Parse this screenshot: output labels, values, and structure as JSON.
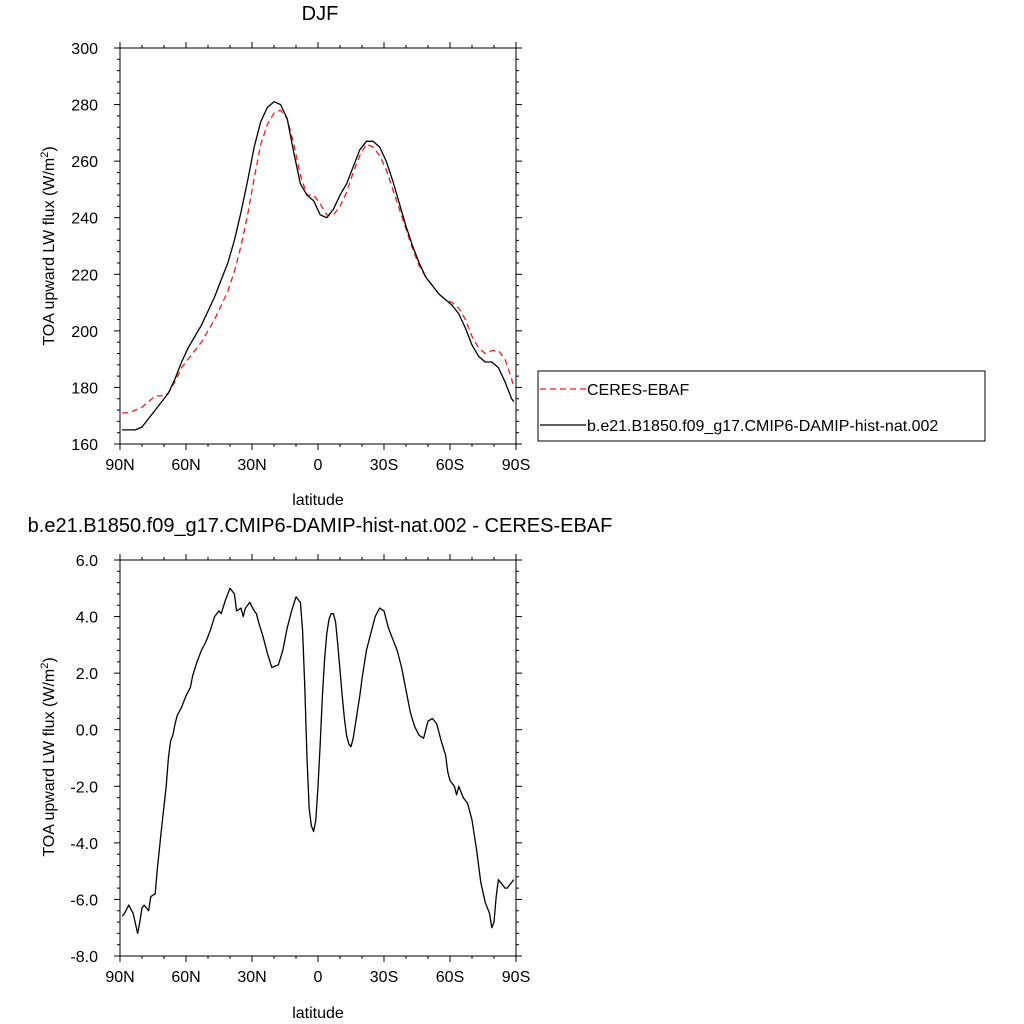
{
  "colors": {
    "obs_line": "#ee1c1c",
    "model_line": "#000000",
    "axis": "#000000",
    "legend_border": "#000000"
  },
  "chart_data": [
    {
      "type": "line",
      "title": "DJF",
      "xlabel": "latitude",
      "ylabel": "TOA upward LW flux (W/m",
      "ylabel_sup": "2",
      "ylabel_close": ")",
      "xlim": [
        -90,
        90
      ],
      "ylim": [
        160,
        300
      ],
      "x_ticks": [
        {
          "value": -90,
          "label": "90N"
        },
        {
          "value": -60,
          "label": "60N"
        },
        {
          "value": -30,
          "label": "30N"
        },
        {
          "value": 0,
          "label": "0"
        },
        {
          "value": 30,
          "label": "30S"
        },
        {
          "value": 60,
          "label": "60S"
        },
        {
          "value": 90,
          "label": "90S"
        }
      ],
      "y_ticks": [
        {
          "value": 160,
          "label": "160"
        },
        {
          "value": 180,
          "label": "180"
        },
        {
          "value": 200,
          "label": "200"
        },
        {
          "value": 220,
          "label": "220"
        },
        {
          "value": 240,
          "label": "240"
        },
        {
          "value": 260,
          "label": "260"
        },
        {
          "value": 280,
          "label": "280"
        },
        {
          "value": 300,
          "label": "300"
        }
      ],
      "legend": {
        "placement": "right",
        "entries": [
          {
            "name": "CERES-EBAF",
            "style": "dashed"
          },
          {
            "name": "b.e21.B1850.f09_g17.CMIP6-DAMIP-hist-nat.002",
            "style": "solid"
          }
        ]
      },
      "series": [
        {
          "name": "CERES-EBAF",
          "style": "dashed",
          "x": [
            -89,
            -86,
            -83,
            -80,
            -77,
            -74,
            -71,
            -68,
            -65,
            -62,
            -59,
            -56,
            -53,
            -50,
            -47,
            -44,
            -41,
            -38,
            -35,
            -32,
            -29,
            -26,
            -23,
            -20,
            -17,
            -14,
            -11,
            -8,
            -5,
            -2,
            1,
            4,
            7,
            10,
            13,
            16,
            19,
            22,
            25,
            28,
            31,
            34,
            37,
            40,
            43,
            46,
            49,
            52,
            55,
            58,
            61,
            64,
            67,
            70,
            73,
            76,
            79,
            82,
            85,
            88,
            89
          ],
          "y": [
            171,
            171,
            172,
            173,
            175,
            177,
            177,
            178,
            182,
            187,
            190,
            193,
            196,
            200,
            204,
            209,
            214,
            221,
            230,
            241,
            254,
            266,
            273,
            277,
            278,
            275,
            266,
            255,
            248,
            248,
            245,
            241,
            241,
            244,
            249,
            256,
            262,
            266,
            265,
            262,
            257,
            250,
            243,
            236,
            229,
            223,
            219,
            216,
            213,
            211,
            210,
            208,
            204,
            198,
            194,
            192,
            193,
            193,
            190,
            183,
            180
          ]
        },
        {
          "name": "b.e21.B1850.f09_g17.CMIP6-DAMIP-hist-nat.002",
          "style": "solid",
          "x": [
            -89,
            -86,
            -83,
            -80,
            -77,
            -74,
            -71,
            -68,
            -65,
            -62,
            -59,
            -56,
            -53,
            -50,
            -47,
            -44,
            -41,
            -38,
            -35,
            -32,
            -29,
            -26,
            -23,
            -20,
            -17,
            -14,
            -11,
            -8,
            -5,
            -2,
            1,
            4,
            7,
            10,
            13,
            16,
            19,
            22,
            25,
            28,
            31,
            34,
            37,
            40,
            43,
            46,
            49,
            52,
            55,
            58,
            61,
            64,
            67,
            70,
            73,
            76,
            79,
            82,
            85,
            88,
            89
          ],
          "y": [
            165,
            165,
            165,
            166,
            169,
            172,
            175,
            178,
            183,
            189,
            194,
            198,
            202,
            207,
            212,
            218,
            224,
            232,
            242,
            253,
            265,
            274,
            279,
            281,
            280,
            275,
            263,
            252,
            248,
            246,
            241,
            240,
            243,
            248,
            252,
            258,
            264,
            267,
            267,
            265,
            260,
            253,
            245,
            237,
            230,
            224,
            219,
            216,
            213,
            211,
            209,
            206,
            201,
            195,
            191,
            189,
            189,
            187,
            182,
            176,
            175
          ]
        }
      ]
    },
    {
      "type": "line",
      "title": "b.e21.B1850.f09_g17.CMIP6-DAMIP-hist-nat.002 - CERES-EBAF",
      "xlabel": "latitude",
      "ylabel": "TOA upward LW flux (W/m",
      "ylabel_sup": "2",
      "ylabel_close": ")",
      "xlim": [
        -90,
        90
      ],
      "ylim": [
        -8,
        6
      ],
      "x_ticks": [
        {
          "value": -90,
          "label": "90N"
        },
        {
          "value": -60,
          "label": "60N"
        },
        {
          "value": -30,
          "label": "30N"
        },
        {
          "value": 0,
          "label": "0"
        },
        {
          "value": 30,
          "label": "30S"
        },
        {
          "value": 60,
          "label": "60S"
        },
        {
          "value": 90,
          "label": "90S"
        }
      ],
      "y_ticks": [
        {
          "value": -8,
          "label": "-8.0"
        },
        {
          "value": -6,
          "label": "-6.0"
        },
        {
          "value": -4,
          "label": "-4.0"
        },
        {
          "value": -2,
          "label": "-2.0"
        },
        {
          "value": 0,
          "label": "0.0"
        },
        {
          "value": 2,
          "label": "2.0"
        },
        {
          "value": 4,
          "label": "4.0"
        },
        {
          "value": 6,
          "label": "6.0"
        }
      ],
      "series": [
        {
          "name": "",
          "style": "solid",
          "x": [
            -89,
            -88,
            -86,
            -84,
            -82,
            -81,
            -80,
            -79,
            -77,
            -76,
            -74,
            -73,
            -71,
            -69,
            -68,
            -67,
            -66,
            -65,
            -64,
            -62,
            -60,
            -58,
            -57,
            -55,
            -53,
            -51,
            -49,
            -47,
            -45,
            -44,
            -42,
            -40,
            -38,
            -37,
            -35,
            -34,
            -33,
            -31,
            -29,
            -28,
            -27,
            -25,
            -23,
            -21,
            -18,
            -16,
            -14,
            -12,
            -10,
            -8,
            -7,
            -6,
            -5,
            -4,
            -3,
            -2,
            -1,
            0,
            1,
            2,
            3,
            4,
            5,
            6,
            7,
            8,
            9,
            10,
            11,
            12,
            13,
            14,
            15,
            16,
            17,
            18,
            19,
            20,
            21,
            22,
            24,
            26,
            28,
            30,
            32,
            34,
            36,
            38,
            40,
            42,
            44,
            46,
            48,
            50,
            52,
            54,
            56,
            58,
            59,
            60,
            62,
            63,
            64,
            66,
            68,
            70,
            72,
            74,
            76,
            78,
            79,
            80,
            81,
            82,
            83,
            84,
            85,
            86,
            87,
            88,
            89
          ],
          "y": [
            -6.6,
            -6.5,
            -6.2,
            -6.5,
            -7.2,
            -6.8,
            -6.3,
            -6.2,
            -6.4,
            -5.9,
            -5.8,
            -4.9,
            -3.4,
            -2.0,
            -1.0,
            -0.4,
            -0.2,
            0.2,
            0.5,
            0.8,
            1.2,
            1.5,
            1.9,
            2.4,
            2.8,
            3.1,
            3.5,
            4.0,
            4.2,
            4.1,
            4.6,
            5.0,
            4.8,
            4.2,
            4.3,
            4.0,
            4.3,
            4.5,
            4.2,
            4.1,
            3.8,
            3.3,
            2.7,
            2.2,
            2.3,
            2.8,
            3.6,
            4.2,
            4.7,
            4.5,
            3.5,
            1.5,
            -1.0,
            -2.8,
            -3.4,
            -3.6,
            -3.2,
            -2.0,
            -0.5,
            1.2,
            2.5,
            3.4,
            3.9,
            4.1,
            4.1,
            3.8,
            3.0,
            2.1,
            1.2,
            0.4,
            -0.2,
            -0.5,
            -0.6,
            -0.3,
            0.2,
            0.7,
            1.2,
            1.8,
            2.3,
            2.8,
            3.4,
            4.0,
            4.3,
            4.2,
            3.6,
            3.2,
            2.8,
            2.2,
            1.4,
            0.6,
            0.1,
            -0.2,
            -0.3,
            0.3,
            0.4,
            0.2,
            -0.4,
            -0.9,
            -1.5,
            -1.8,
            -2.0,
            -2.3,
            -2.0,
            -2.4,
            -2.6,
            -3.2,
            -4.2,
            -5.4,
            -6.1,
            -6.5,
            -7.0,
            -6.8,
            -5.9,
            -5.3,
            -5.4,
            -5.5,
            -5.6,
            -5.6,
            -5.5,
            -5.4,
            -5.3
          ]
        }
      ]
    }
  ]
}
